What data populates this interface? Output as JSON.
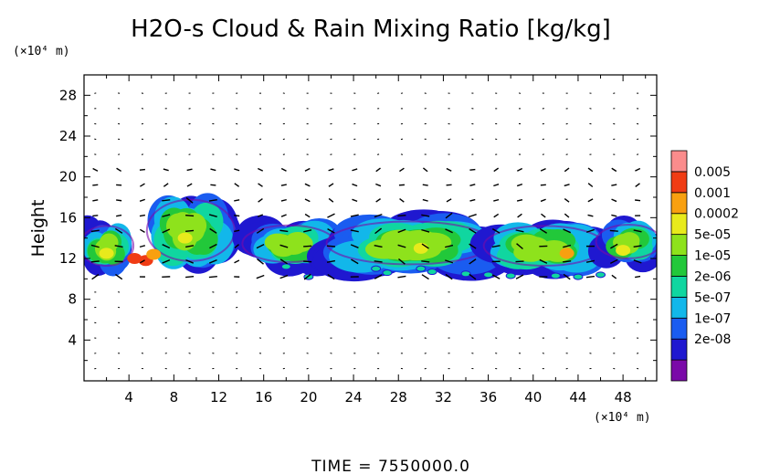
{
  "chart_data": {
    "type": "heatmap",
    "title": "H2O-s Cloud & Rain Mixing Ratio [kg/kg]",
    "ylabel": "Height",
    "x_units": "(×10⁴ m)",
    "y_units": "(×10⁴ m)",
    "xlim": [
      0,
      51
    ],
    "ylim": [
      0,
      30
    ],
    "x_ticks": [
      "4",
      "8",
      "12",
      "16",
      "20",
      "24",
      "28",
      "32",
      "36",
      "40",
      "44",
      "48"
    ],
    "y_ticks": [
      "4",
      "8",
      "12",
      "16",
      "20",
      "24",
      "28"
    ],
    "time_label": "TIME = 7550000.0",
    "colorbar": {
      "labels": [
        "0.005",
        "0.001",
        "0.0002",
        "5e-05",
        "1e-05",
        "2e-06",
        "5e-07",
        "1e-07",
        "2e-08"
      ],
      "colors": [
        "#7a0aa8",
        "#1f18d0",
        "#1a5cf0",
        "#12b7ea",
        "#10d6a0",
        "#22c83a",
        "#8ee21c",
        "#e8ea1c",
        "#f8a010",
        "#f03c14",
        "#fa8c8c"
      ]
    },
    "cloud_bands": [
      {
        "x": [
          0,
          4
        ],
        "y": [
          9.5,
          16
        ]
      },
      {
        "x": [
          6,
          13
        ],
        "y": [
          9,
          19
        ]
      },
      {
        "x": [
          14.5,
          22
        ],
        "y": [
          10,
          16
        ]
      },
      {
        "x": [
          22,
          36
        ],
        "y": [
          9.5,
          16.5
        ]
      },
      {
        "x": [
          36,
          46
        ],
        "y": [
          9.5,
          16
        ]
      },
      {
        "x": [
          46,
          51
        ],
        "y": [
          10.5,
          16
        ]
      }
    ],
    "max_intensity_region": {
      "x": [
        3,
        8
      ],
      "y": [
        11,
        13
      ],
      "value": "0.001"
    }
  }
}
